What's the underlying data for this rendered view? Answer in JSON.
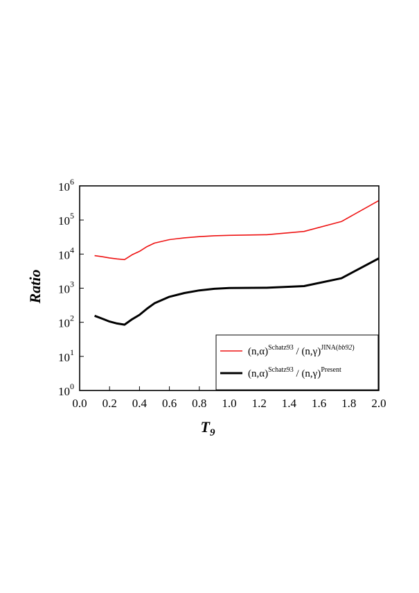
{
  "chart_data": {
    "type": "line",
    "title": "",
    "xlabel_base": "T",
    "xlabel_sub": "9",
    "ylabel": "Ratio",
    "xlim": [
      0.0,
      2.0
    ],
    "ylim": [
      1,
      1000000
    ],
    "y_scale": "log",
    "grid": false,
    "legend_position": "lower-right",
    "x_ticks": [
      "0.0",
      "0.2",
      "0.4",
      "0.6",
      "0.8",
      "1.0",
      "1.2",
      "1.4",
      "1.6",
      "1.8",
      "2.0"
    ],
    "y_ticks": [
      {
        "base": "10",
        "exp": "0"
      },
      {
        "base": "10",
        "exp": "1"
      },
      {
        "base": "10",
        "exp": "2"
      },
      {
        "base": "10",
        "exp": "3"
      },
      {
        "base": "10",
        "exp": "4"
      },
      {
        "base": "10",
        "exp": "5"
      },
      {
        "base": "10",
        "exp": "6"
      }
    ],
    "series": [
      {
        "legend": {
          "a": "(n,α)",
          "a_sup": "Schatz93",
          "sep": " / ",
          "b": "(n,γ)",
          "b_sup": "JINA(",
          "b_sup_it": "bb92",
          "b_sup_end": ")"
        },
        "color": "#ee1111",
        "x": [
          0.1,
          0.15,
          0.2,
          0.25,
          0.3,
          0.35,
          0.4,
          0.45,
          0.5,
          0.6,
          0.7,
          0.8,
          0.9,
          1.0,
          1.25,
          1.5,
          1.75,
          2.0
        ],
        "y": [
          9000,
          8400,
          7700,
          7200,
          6900,
          9500,
          12000,
          16500,
          21000,
          26500,
          30000,
          32500,
          34500,
          35500,
          37000,
          46000,
          90000,
          370000
        ]
      },
      {
        "legend": {
          "a": "(n,α)",
          "a_sup": "Schatz93",
          "sep": " / ",
          "b": "(n,γ)",
          "b_sup": "Present",
          "b_sup_it": "",
          "b_sup_end": ""
        },
        "color": "#000000",
        "x": [
          0.1,
          0.15,
          0.2,
          0.25,
          0.3,
          0.35,
          0.4,
          0.45,
          0.5,
          0.6,
          0.7,
          0.8,
          0.9,
          1.0,
          1.25,
          1.5,
          1.75,
          2.0
        ],
        "y": [
          155,
          128,
          105,
          92,
          85,
          122,
          165,
          250,
          360,
          560,
          720,
          860,
          960,
          1010,
          1030,
          1150,
          1950,
          7500
        ]
      }
    ]
  }
}
